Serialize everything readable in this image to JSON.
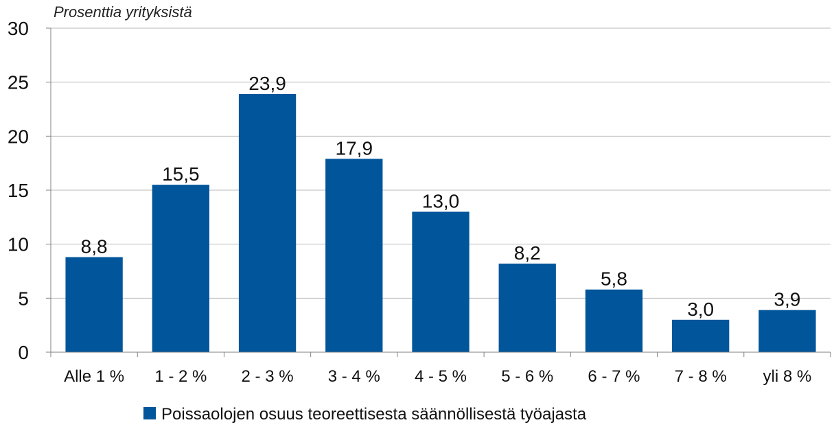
{
  "chart_data": {
    "type": "bar",
    "title": "",
    "ylabel": "Prosenttia yrityksistä",
    "xlabel": "",
    "categories": [
      "Alle 1 %",
      "1 - 2 %",
      "2 - 3 %",
      "3 - 4 %",
      "4 - 5 %",
      "5 - 6 %",
      "6 - 7 %",
      "7 - 8 %",
      "yli 8 %"
    ],
    "series": [
      {
        "name": "Poissaolojen osuus teoreettisesta säännöllisestä työajasta",
        "values": [
          8.8,
          15.5,
          23.9,
          17.9,
          13.0,
          8.2,
          5.8,
          3.0,
          3.9
        ],
        "labels": [
          "8,8",
          "15,5",
          "23,9",
          "17,9",
          "13,0",
          "8,2",
          "5,8",
          "3,0",
          "3,9"
        ],
        "color": "#00559b"
      }
    ],
    "ylim": [
      0,
      30
    ],
    "yticks": [
      0,
      5,
      10,
      15,
      20,
      25,
      30
    ],
    "grid": true,
    "legend_position": "bottom"
  },
  "colors": {
    "bar": "#00559b",
    "grid": "#b8b8b8",
    "axis": "#808080"
  }
}
